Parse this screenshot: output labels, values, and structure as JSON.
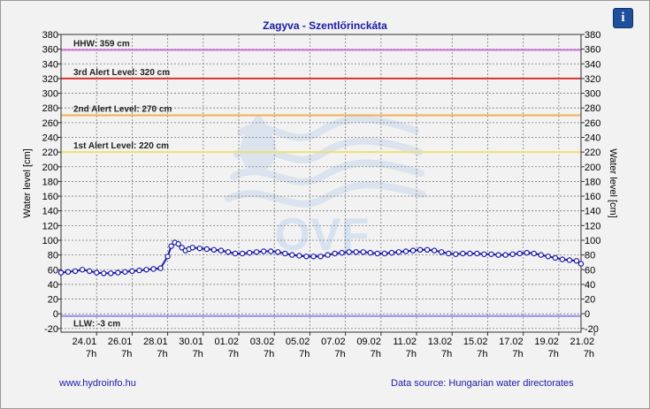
{
  "header": {
    "title": "Zagyva - Szentlőrinckáta",
    "info_icon": "i"
  },
  "footer": {
    "website": "www.hydroinfo.hu",
    "data_source": "Data source: Hungarian water directorates"
  },
  "watermark": "OVF",
  "colors": {
    "series": "#1a1aa8",
    "hhw": "#d070d8",
    "alert3": "#d83232",
    "alert2": "#f0b050",
    "alert1": "#f0e070",
    "llw": "#9090e8",
    "text_blue": "#1a1aa8",
    "info_button": "#1d4f9c"
  },
  "chart_data": {
    "type": "line",
    "title": "Zagyva - Szentlőrinckáta",
    "ylabel": "Water level [cm]",
    "ylabel_right": "Water level [cm]",
    "ylim": [
      -25,
      380
    ],
    "y_ticks": [
      -20,
      0,
      20,
      40,
      60,
      80,
      100,
      120,
      140,
      160,
      180,
      200,
      220,
      240,
      260,
      280,
      300,
      320,
      340,
      360,
      380
    ],
    "xlim": [
      -2.0,
      27.25
    ],
    "x_ticks": [
      {
        "x": 0,
        "date": "24.01",
        "hour": "7h"
      },
      {
        "x": 2,
        "date": "26.01",
        "hour": "7h"
      },
      {
        "x": 4,
        "date": "28.01",
        "hour": "7h"
      },
      {
        "x": 6,
        "date": "30.01",
        "hour": "7h"
      },
      {
        "x": 8,
        "date": "01.02",
        "hour": "7h"
      },
      {
        "x": 10,
        "date": "03.02",
        "hour": "7h"
      },
      {
        "x": 12,
        "date": "05.02",
        "hour": "7h"
      },
      {
        "x": 14,
        "date": "07.02",
        "hour": "7h"
      },
      {
        "x": 16,
        "date": "09.02",
        "hour": "7h"
      },
      {
        "x": 18,
        "date": "11.02",
        "hour": "7h"
      },
      {
        "x": 20,
        "date": "13.02",
        "hour": "7h"
      },
      {
        "x": 22,
        "date": "15.02",
        "hour": "7h"
      },
      {
        "x": 24,
        "date": "17.02",
        "hour": "7h"
      },
      {
        "x": 26,
        "date": "19.02",
        "hour": "7h"
      },
      {
        "x": 28,
        "date": "21.02",
        "hour": "7h"
      }
    ],
    "grid": true,
    "reference_lines": [
      {
        "label": "HHW: 359 cm",
        "value": 359,
        "color": "#d070d8"
      },
      {
        "label": "3rd Alert Level: 320 cm",
        "value": 320,
        "color": "#d83232"
      },
      {
        "label": "2nd Alert Level: 270 cm",
        "value": 270,
        "color": "#f0b050"
      },
      {
        "label": "1st Alert Level: 220 cm",
        "value": 220,
        "color": "#f0e070"
      },
      {
        "label": "LLW: -3 cm",
        "value": -3,
        "color": "#9090e8"
      }
    ],
    "series": [
      {
        "values_x": [
          -2.0,
          -1.6,
          -1.2,
          -0.8,
          -0.4,
          0.0,
          0.4,
          0.8,
          1.2,
          1.6,
          2.0,
          2.4,
          2.8,
          3.2,
          3.6,
          4.0,
          4.2,
          4.4,
          4.6,
          4.8,
          5.0,
          5.2,
          5.4,
          5.8,
          6.2,
          6.6,
          7.0,
          7.4,
          7.8,
          8.2,
          8.6,
          9.0,
          9.4,
          9.8,
          10.2,
          10.6,
          11.0,
          11.4,
          11.8,
          12.2,
          12.6,
          13.0,
          13.4,
          13.8,
          14.2,
          14.6,
          15.0,
          15.4,
          15.8,
          16.2,
          16.6,
          17.0,
          17.4,
          17.8,
          18.2,
          18.6,
          19.0,
          19.4,
          19.8,
          20.2,
          20.6,
          21.0,
          21.4,
          21.8,
          22.2,
          22.6,
          23.0,
          23.4,
          23.8,
          24.2,
          24.6,
          25.0,
          25.4,
          25.8,
          26.2,
          26.6,
          27.0,
          27.25
        ],
        "values": [
          56,
          57,
          58,
          60,
          58,
          56,
          55,
          55,
          56,
          57,
          58,
          59,
          60,
          61,
          62,
          78,
          92,
          97,
          95,
          90,
          86,
          88,
          90,
          89,
          88,
          87,
          86,
          84,
          82,
          82,
          83,
          84,
          85,
          85,
          84,
          82,
          80,
          79,
          78,
          78,
          78,
          80,
          82,
          83,
          84,
          84,
          84,
          83,
          82,
          82,
          83,
          84,
          85,
          86,
          87,
          87,
          86,
          84,
          82,
          81,
          82,
          82,
          82,
          81,
          81,
          80,
          80,
          81,
          82,
          83,
          82,
          80,
          78,
          76,
          74,
          73,
          72,
          68
        ]
      }
    ]
  }
}
